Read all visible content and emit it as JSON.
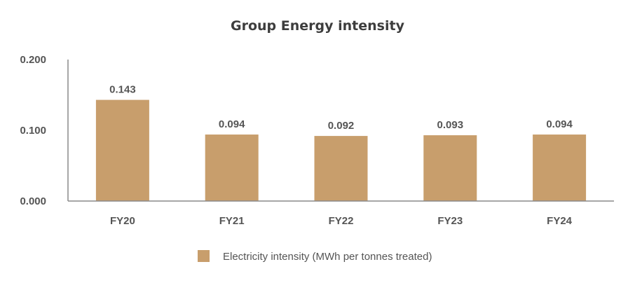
{
  "chart_data": {
    "type": "bar",
    "title": "Group Energy intensity",
    "categories": [
      "FY20",
      "FY21",
      "FY22",
      "FY23",
      "FY24"
    ],
    "series": [
      {
        "name": "Electricity intensity (MWh per tonnes treated)",
        "values": [
          0.143,
          0.094,
          0.092,
          0.093,
          0.094
        ],
        "labels": [
          "0.143",
          "0.094",
          "0.092",
          "0.093",
          "0.094"
        ],
        "color": "#c89e6c"
      }
    ],
    "y_ticks": [
      "0.000",
      "0.100",
      "0.200"
    ],
    "y_tick_values": [
      0,
      0.1,
      0.2
    ],
    "ylim": [
      0,
      0.2
    ],
    "xlabel": "",
    "ylabel": "",
    "grid": false,
    "legend": "bottom-center"
  }
}
